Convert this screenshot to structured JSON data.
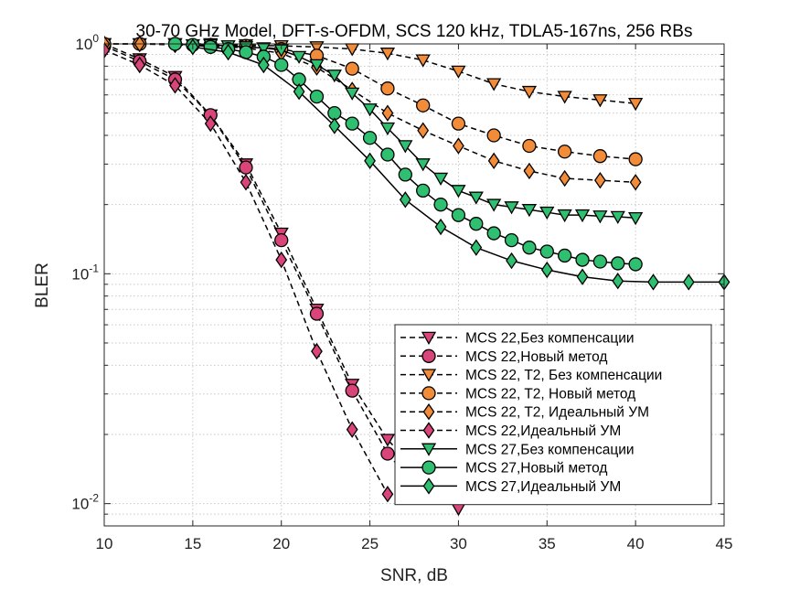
{
  "chart_data": {
    "type": "line",
    "title": "30-70 GHz Model, DFT-s-OFDM, SCS 120 kHz, TDLA5-167ns, 256 RBs",
    "xlabel": "SNR, dB",
    "ylabel": "BLER",
    "xlim": [
      10,
      45
    ],
    "ylim": [
      0.008,
      1
    ],
    "yscale": "log",
    "grid": true,
    "legend_position": "inside-bottom-right",
    "x_ticks": [
      "10",
      "15",
      "20",
      "25",
      "30",
      "35",
      "40",
      "45"
    ],
    "series": [
      {
        "name": "MCS 22,Без компенсации",
        "color": "#d9457a",
        "linestyle": "dashed",
        "marker": "triangle-down",
        "x": [
          10,
          12,
          14,
          16,
          18,
          20,
          22,
          24,
          26,
          28,
          30
        ],
        "y": [
          1.0,
          0.86,
          0.72,
          0.49,
          0.3,
          0.15,
          0.07,
          0.033,
          0.019,
          0.013,
          0.0095
        ]
      },
      {
        "name": "MCS 22,Новый метод",
        "color": "#d9457a",
        "linestyle": "dashed",
        "marker": "circle",
        "x": [
          10,
          12,
          14,
          16,
          18,
          20,
          22,
          24,
          26,
          28
        ],
        "y": [
          0.98,
          0.84,
          0.7,
          0.49,
          0.29,
          0.14,
          0.067,
          0.031,
          0.0165,
          0.011
        ]
      },
      {
        "name": "MCS 22, T2, Без компенсации",
        "color": "#f28c38",
        "linestyle": "dashed",
        "marker": "triangle-down",
        "x": [
          10,
          12,
          14,
          16,
          18,
          20,
          22,
          24,
          26,
          28,
          30,
          32,
          34,
          36,
          38,
          40
        ],
        "y": [
          1.0,
          1.0,
          1.0,
          1.0,
          0.99,
          0.98,
          0.97,
          0.95,
          0.91,
          0.85,
          0.76,
          0.67,
          0.62,
          0.59,
          0.57,
          0.55
        ]
      },
      {
        "name": "MCS 22, T2, Новый метод",
        "color": "#f28c38",
        "linestyle": "dashed",
        "marker": "circle",
        "x": [
          10,
          12,
          14,
          16,
          18,
          20,
          22,
          24,
          26,
          28,
          30,
          32,
          34,
          36,
          38,
          40
        ],
        "y": [
          1.0,
          1.0,
          1.0,
          0.99,
          0.98,
          0.95,
          0.89,
          0.78,
          0.64,
          0.54,
          0.45,
          0.4,
          0.36,
          0.34,
          0.325,
          0.315
        ]
      },
      {
        "name": "MCS 22, T2, Идеальный УМ",
        "color": "#f28c38",
        "linestyle": "dashed",
        "marker": "diamond",
        "x": [
          10,
          12,
          14,
          16,
          18,
          20,
          22,
          24,
          26,
          28,
          30,
          32,
          34,
          36,
          38,
          40
        ],
        "y": [
          1.0,
          1.0,
          0.99,
          0.98,
          0.96,
          0.91,
          0.79,
          0.63,
          0.5,
          0.42,
          0.36,
          0.31,
          0.28,
          0.26,
          0.255,
          0.25
        ]
      },
      {
        "name": "MCS 22,Идеальный УМ",
        "color": "#d9457a",
        "linestyle": "dashed",
        "marker": "diamond",
        "x": [
          10,
          12,
          14,
          16,
          18,
          20,
          22,
          24,
          26
        ],
        "y": [
          0.94,
          0.81,
          0.66,
          0.45,
          0.25,
          0.115,
          0.046,
          0.021,
          0.011
        ]
      },
      {
        "name": "MCS 27,Без компенсации",
        "color": "#2fbf71",
        "linestyle": "solid",
        "marker": "triangle-down",
        "x": [
          14,
          15,
          16,
          17,
          18,
          19,
          20,
          21,
          22,
          23,
          24,
          25,
          26,
          27,
          28,
          29,
          30,
          31,
          32,
          33,
          34,
          35,
          36,
          37,
          38,
          39,
          40
        ],
        "y": [
          1.0,
          0.99,
          0.99,
          0.98,
          0.97,
          0.96,
          0.94,
          0.88,
          0.81,
          0.73,
          0.61,
          0.52,
          0.43,
          0.36,
          0.3,
          0.26,
          0.23,
          0.215,
          0.2,
          0.195,
          0.19,
          0.185,
          0.18,
          0.18,
          0.178,
          0.177,
          0.175
        ]
      },
      {
        "name": "MCS 27,Новый метод",
        "color": "#2fbf71",
        "linestyle": "solid",
        "marker": "circle",
        "x": [
          14,
          15,
          16,
          17,
          18,
          19,
          20,
          21,
          22,
          23,
          24,
          25,
          26,
          27,
          28,
          29,
          30,
          31,
          32,
          33,
          34,
          35,
          36,
          37,
          38,
          39,
          40
        ],
        "y": [
          1.0,
          0.99,
          0.97,
          0.95,
          0.92,
          0.88,
          0.81,
          0.7,
          0.59,
          0.5,
          0.45,
          0.39,
          0.33,
          0.27,
          0.23,
          0.2,
          0.18,
          0.165,
          0.15,
          0.14,
          0.13,
          0.125,
          0.12,
          0.115,
          0.113,
          0.111,
          0.11
        ]
      },
      {
        "name": "MCS 27,Идеальный УМ",
        "color": "#2fbf71",
        "linestyle": "solid",
        "marker": "diamond",
        "x": [
          15,
          17,
          19,
          21,
          23,
          25,
          27,
          29,
          31,
          33,
          35,
          37,
          39,
          41,
          43,
          45
        ],
        "y": [
          0.97,
          0.92,
          0.81,
          0.62,
          0.44,
          0.31,
          0.21,
          0.16,
          0.13,
          0.114,
          0.104,
          0.097,
          0.093,
          0.092,
          0.092,
          0.092
        ]
      }
    ]
  }
}
